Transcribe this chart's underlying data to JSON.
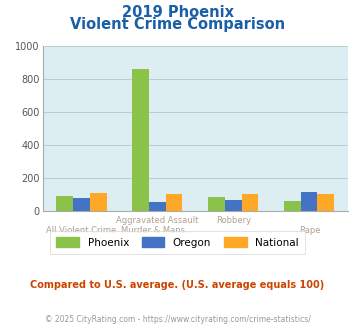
{
  "title_line1": "2019 Phoenix",
  "title_line2": "Violent Crime Comparison",
  "phoenix": [
    95,
    860,
    85,
    60
  ],
  "oregon": [
    80,
    58,
    68,
    115
  ],
  "national": [
    110,
    107,
    107,
    105
  ],
  "phoenix_color": "#8bc34a",
  "oregon_color": "#4472c4",
  "national_color": "#ffa726",
  "plot_bg": "#ddeef3",
  "title_color": "#1a5fa8",
  "axis_label_color": "#b0a090",
  "grid_color": "#b8cdd0",
  "ylim": [
    0,
    1000
  ],
  "yticks": [
    0,
    200,
    400,
    600,
    800,
    1000
  ],
  "footer_text": "Compared to U.S. average. (U.S. average equals 100)",
  "copyright_text": "© 2025 CityRating.com - https://www.cityrating.com/crime-statistics/",
  "footer_color": "#cc4400",
  "copyright_color": "#999999",
  "legend_labels": [
    "Phoenix",
    "Oregon",
    "National"
  ],
  "bar_width": 0.22,
  "cat_line1": [
    "",
    "Aggravated Assault",
    "Robbery",
    ""
  ],
  "cat_line2": [
    "All Violent Crime",
    "Murder & Mans...",
    "",
    "Rape"
  ]
}
